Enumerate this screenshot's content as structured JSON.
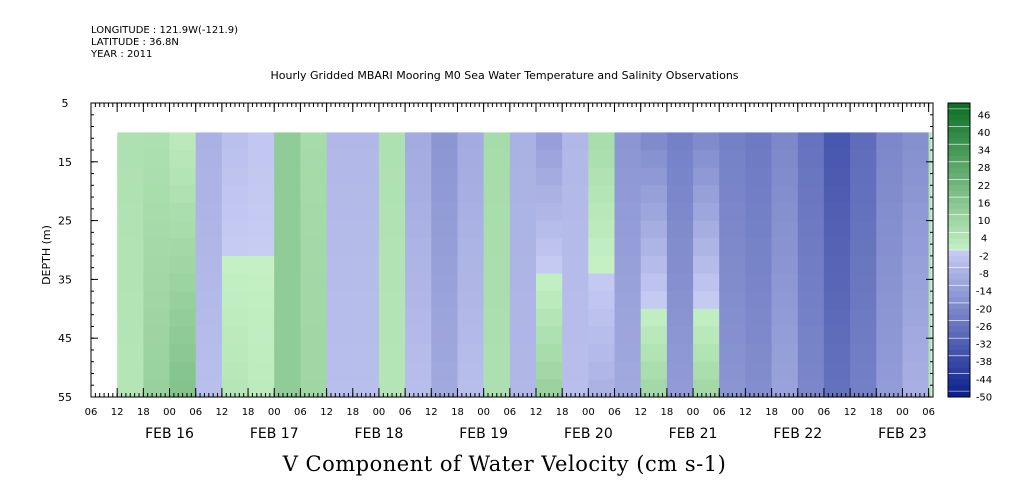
{
  "header": {
    "longitude": "LONGITUDE : 121.9W(-121.9)",
    "latitude": "LATITUDE : 36.8N",
    "year": "YEAR : 2011"
  },
  "chart_data": {
    "type": "heatmap",
    "title": "Hourly Gridded MBARI Mooring M0 Sea Water Temperature and Salinity Observations",
    "ylabel": "DEPTH (m)",
    "xlabel": "V Component of Water Velocity (cm s-1)",
    "ylim": [
      55,
      5
    ],
    "y_ticks": [
      "5",
      "15",
      "25",
      "35",
      "45",
      "55"
    ],
    "x_start": "2011-02-15T06:00",
    "x_end": "2011-02-23T07:00",
    "data_start": "2011-02-15T12:00",
    "data_depth_range": [
      10,
      55
    ],
    "x_hour_ticks": [
      "06",
      "12",
      "18",
      "00",
      "06",
      "12",
      "18",
      "00",
      "06",
      "12",
      "18",
      "00",
      "06",
      "12",
      "18",
      "00",
      "06",
      "12",
      "18",
      "00",
      "06",
      "12",
      "18",
      "00",
      "06",
      "12",
      "18",
      "00",
      "06",
      "12",
      "18",
      "00",
      "06"
    ],
    "x_date_labels": [
      "FEB 16",
      "FEB 17",
      "FEB 18",
      "FEB 19",
      "FEB 20",
      "FEB 21",
      "FEB 22",
      "FEB 23"
    ],
    "colorbar": {
      "min": -50,
      "max": 50,
      "step": 2,
      "labels": [
        "46",
        "40",
        "34",
        "28",
        "22",
        "16",
        "10",
        "4",
        "-2",
        "-8",
        "-14",
        "-20",
        "-26",
        "-32",
        "-38",
        "-44",
        "-50"
      ],
      "colors": {
        "negative_strong": "#0a1f8c",
        "negative_weak": "#c8cdf4",
        "positive_weak": "#c4f0c4",
        "positive_strong": "#0a6e24"
      }
    },
    "v_by_time": [
      {
        "time": "2011-02-15T12:00",
        "near_surface": 6,
        "near_bottom": 4
      },
      {
        "time": "2011-02-15T18:00",
        "near_surface": 6,
        "near_bottom": 12
      },
      {
        "time": "2011-02-16T00:00",
        "near_surface": 2,
        "near_bottom": 18
      },
      {
        "time": "2011-02-16T06:00",
        "near_surface": -8,
        "near_bottom": -4
      },
      {
        "time": "2011-02-16T12:00",
        "near_surface": -4,
        "near_bottom": 4
      },
      {
        "time": "2011-02-16T18:00",
        "near_surface": -2,
        "near_bottom": 2
      },
      {
        "time": "2011-02-17T00:00",
        "near_surface": 14,
        "near_bottom": 14
      },
      {
        "time": "2011-02-17T06:00",
        "near_surface": 8,
        "near_bottom": 10
      },
      {
        "time": "2011-02-17T12:00",
        "near_surface": -6,
        "near_bottom": -4
      },
      {
        "time": "2011-02-17T18:00",
        "near_surface": -6,
        "near_bottom": -4
      },
      {
        "time": "2011-02-18T00:00",
        "near_surface": 6,
        "near_bottom": 4
      },
      {
        "time": "2011-02-18T06:00",
        "near_surface": -10,
        "near_bottom": -4
      },
      {
        "time": "2011-02-18T12:00",
        "near_surface": -16,
        "near_bottom": -10
      },
      {
        "time": "2011-02-18T18:00",
        "near_surface": -10,
        "near_bottom": -4
      },
      {
        "time": "2011-02-19T00:00",
        "near_surface": 8,
        "near_bottom": 6
      },
      {
        "time": "2011-02-19T06:00",
        "near_surface": -8,
        "near_bottom": -6
      },
      {
        "time": "2011-02-19T12:00",
        "near_surface": -14,
        "near_bottom": 12
      },
      {
        "time": "2011-02-19T18:00",
        "near_surface": -6,
        "near_bottom": -4
      },
      {
        "time": "2011-02-20T00:00",
        "near_surface": 8,
        "near_bottom": -8
      },
      {
        "time": "2011-02-20T06:00",
        "near_surface": -16,
        "near_bottom": -10
      },
      {
        "time": "2011-02-20T12:00",
        "near_surface": -20,
        "near_bottom": 10
      },
      {
        "time": "2011-02-20T18:00",
        "near_surface": -22,
        "near_bottom": -14
      },
      {
        "time": "2011-02-21T00:00",
        "near_surface": -20,
        "near_bottom": 10
      },
      {
        "time": "2011-02-21T06:00",
        "near_surface": -22,
        "near_bottom": -16
      },
      {
        "time": "2011-02-21T12:00",
        "near_surface": -24,
        "near_bottom": -18
      },
      {
        "time": "2011-02-21T18:00",
        "near_surface": -20,
        "near_bottom": -12
      },
      {
        "time": "2011-02-22T00:00",
        "near_surface": -26,
        "near_bottom": -20
      },
      {
        "time": "2011-02-22T06:00",
        "near_surface": -34,
        "near_bottom": -26
      },
      {
        "time": "2011-02-22T12:00",
        "near_surface": -28,
        "near_bottom": -22
      },
      {
        "time": "2011-02-22T18:00",
        "near_surface": -20,
        "near_bottom": -14
      },
      {
        "time": "2011-02-23T00:00",
        "near_surface": -18,
        "near_bottom": -8
      },
      {
        "time": "2011-02-23T06:00",
        "near_surface": 4,
        "near_bottom": 4
      }
    ]
  }
}
